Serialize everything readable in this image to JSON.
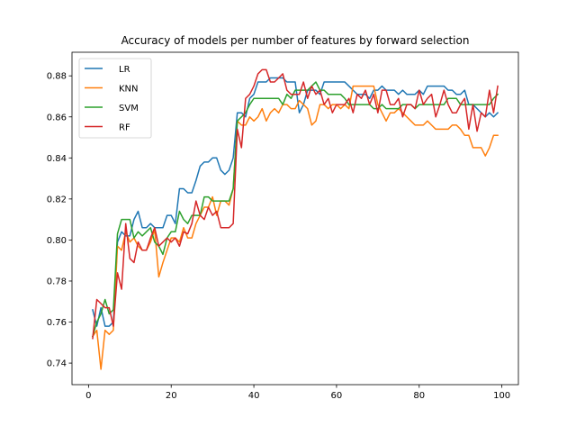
{
  "chart_data": {
    "type": "line",
    "title": "Accuracy of models per number of features by forward selection",
    "xlabel": "",
    "ylabel": "",
    "xlim": [
      -4,
      104
    ],
    "ylim": [
      0.7295,
      0.8915
    ],
    "xticks": [
      0,
      20,
      40,
      60,
      80,
      100
    ],
    "xtick_labels": [
      "0",
      "20",
      "40",
      "60",
      "80",
      "100"
    ],
    "yticks": [
      0.74,
      0.76,
      0.78,
      0.8,
      0.82,
      0.84,
      0.86,
      0.88
    ],
    "ytick_labels": [
      "0.74",
      "0.76",
      "0.78",
      "0.80",
      "0.82",
      "0.84",
      "0.86",
      "0.88"
    ],
    "grid": false,
    "legend_position": "upper-left",
    "x": [
      1,
      2,
      3,
      4,
      5,
      6,
      7,
      8,
      9,
      10,
      11,
      12,
      13,
      14,
      15,
      16,
      17,
      18,
      19,
      20,
      21,
      22,
      23,
      24,
      25,
      26,
      27,
      28,
      29,
      30,
      31,
      32,
      33,
      34,
      35,
      36,
      37,
      38,
      39,
      40,
      41,
      42,
      43,
      44,
      45,
      46,
      47,
      48,
      49,
      50,
      51,
      52,
      53,
      54,
      55,
      56,
      57,
      58,
      59,
      60,
      61,
      62,
      63,
      64,
      65,
      66,
      67,
      68,
      69,
      70,
      71,
      72,
      73,
      74,
      75,
      76,
      77,
      78,
      79,
      80,
      81,
      82,
      83,
      84,
      85,
      86,
      87,
      88,
      89,
      90,
      91,
      92,
      93,
      94,
      95,
      96,
      97,
      98,
      99
    ],
    "series": [
      {
        "name": "LR",
        "color": "#1f77b4",
        "values": [
          0.766,
          0.758,
          0.767,
          0.758,
          0.758,
          0.76,
          0.799,
          0.804,
          0.802,
          0.802,
          0.81,
          0.814,
          0.806,
          0.806,
          0.808,
          0.806,
          0.806,
          0.806,
          0.812,
          0.812,
          0.808,
          0.825,
          0.825,
          0.823,
          0.823,
          0.829,
          0.836,
          0.838,
          0.838,
          0.84,
          0.84,
          0.834,
          0.832,
          0.834,
          0.84,
          0.862,
          0.862,
          0.86,
          0.869,
          0.871,
          0.877,
          0.877,
          0.877,
          0.879,
          0.879,
          0.879,
          0.879,
          0.877,
          0.877,
          0.877,
          0.862,
          0.866,
          0.873,
          0.873,
          0.873,
          0.871,
          0.877,
          0.877,
          0.877,
          0.877,
          0.877,
          0.877,
          0.875,
          0.873,
          0.871,
          0.871,
          0.871,
          0.869,
          0.873,
          0.873,
          0.875,
          0.873,
          0.873,
          0.873,
          0.871,
          0.873,
          0.871,
          0.871,
          0.871,
          0.873,
          0.871,
          0.875,
          0.875,
          0.875,
          0.875,
          0.875,
          0.873,
          0.873,
          0.871,
          0.871,
          0.873,
          0.866,
          0.866,
          0.864,
          0.862,
          0.86,
          0.862,
          0.86,
          0.862
        ]
      },
      {
        "name": "KNN",
        "color": "#ff7f0e",
        "values": [
          0.753,
          0.756,
          0.737,
          0.756,
          0.754,
          0.756,
          0.797,
          0.795,
          0.804,
          0.799,
          0.801,
          0.797,
          0.795,
          0.795,
          0.799,
          0.805,
          0.782,
          0.789,
          0.795,
          0.801,
          0.801,
          0.799,
          0.806,
          0.801,
          0.801,
          0.808,
          0.812,
          0.816,
          0.816,
          0.821,
          0.812,
          0.819,
          0.819,
          0.817,
          0.825,
          0.858,
          0.856,
          0.856,
          0.86,
          0.858,
          0.86,
          0.864,
          0.858,
          0.862,
          0.864,
          0.862,
          0.866,
          0.866,
          0.864,
          0.864,
          0.868,
          0.866,
          0.864,
          0.856,
          0.858,
          0.866,
          0.866,
          0.864,
          0.866,
          0.866,
          0.864,
          0.866,
          0.864,
          0.875,
          0.875,
          0.875,
          0.875,
          0.875,
          0.875,
          0.866,
          0.862,
          0.858,
          0.862,
          0.862,
          0.864,
          0.862,
          0.86,
          0.858,
          0.856,
          0.856,
          0.856,
          0.858,
          0.856,
          0.854,
          0.854,
          0.854,
          0.854,
          0.856,
          0.856,
          0.854,
          0.851,
          0.851,
          0.845,
          0.845,
          0.845,
          0.841,
          0.845,
          0.851,
          0.851
        ]
      },
      {
        "name": "SVM",
        "color": "#2ca02c",
        "values": [
          0.753,
          0.76,
          0.764,
          0.771,
          0.764,
          0.766,
          0.803,
          0.81,
          0.81,
          0.81,
          0.801,
          0.804,
          0.802,
          0.804,
          0.806,
          0.799,
          0.797,
          0.793,
          0.801,
          0.804,
          0.804,
          0.814,
          0.81,
          0.808,
          0.812,
          0.812,
          0.812,
          0.821,
          0.821,
          0.819,
          0.819,
          0.819,
          0.819,
          0.819,
          0.825,
          0.858,
          0.86,
          0.862,
          0.866,
          0.869,
          0.869,
          0.869,
          0.869,
          0.869,
          0.869,
          0.869,
          0.866,
          0.871,
          0.869,
          0.873,
          0.873,
          0.873,
          0.873,
          0.875,
          0.877,
          0.873,
          0.873,
          0.871,
          0.871,
          0.871,
          0.871,
          0.869,
          0.866,
          0.866,
          0.866,
          0.866,
          0.866,
          0.866,
          0.864,
          0.864,
          0.866,
          0.864,
          0.864,
          0.864,
          0.864,
          0.866,
          0.866,
          0.866,
          0.864,
          0.866,
          0.866,
          0.866,
          0.866,
          0.866,
          0.866,
          0.866,
          0.869,
          0.869,
          0.869,
          0.866,
          0.866,
          0.866,
          0.866,
          0.866,
          0.866,
          0.866,
          0.866,
          0.869,
          0.871
        ]
      },
      {
        "name": "RF",
        "color": "#d62728",
        "values": [
          0.752,
          0.771,
          0.769,
          0.767,
          0.767,
          0.758,
          0.784,
          0.776,
          0.808,
          0.791,
          0.789,
          0.799,
          0.795,
          0.795,
          0.801,
          0.806,
          0.797,
          0.799,
          0.801,
          0.799,
          0.801,
          0.797,
          0.804,
          0.803,
          0.808,
          0.819,
          0.812,
          0.81,
          0.816,
          0.812,
          0.814,
          0.806,
          0.806,
          0.806,
          0.808,
          0.854,
          0.845,
          0.869,
          0.871,
          0.875,
          0.881,
          0.883,
          0.883,
          0.877,
          0.877,
          0.879,
          0.881,
          0.873,
          0.871,
          0.871,
          0.871,
          0.877,
          0.869,
          0.875,
          0.871,
          0.873,
          0.866,
          0.869,
          0.862,
          0.866,
          0.866,
          0.866,
          0.869,
          0.862,
          0.871,
          0.869,
          0.873,
          0.866,
          0.871,
          0.862,
          0.873,
          0.873,
          0.866,
          0.866,
          0.869,
          0.86,
          0.866,
          0.866,
          0.864,
          0.873,
          0.866,
          0.869,
          0.871,
          0.86,
          0.866,
          0.873,
          0.866,
          0.862,
          0.862,
          0.866,
          0.869,
          0.854,
          0.866,
          0.853,
          0.862,
          0.86,
          0.873,
          0.862,
          0.875
        ]
      }
    ]
  }
}
